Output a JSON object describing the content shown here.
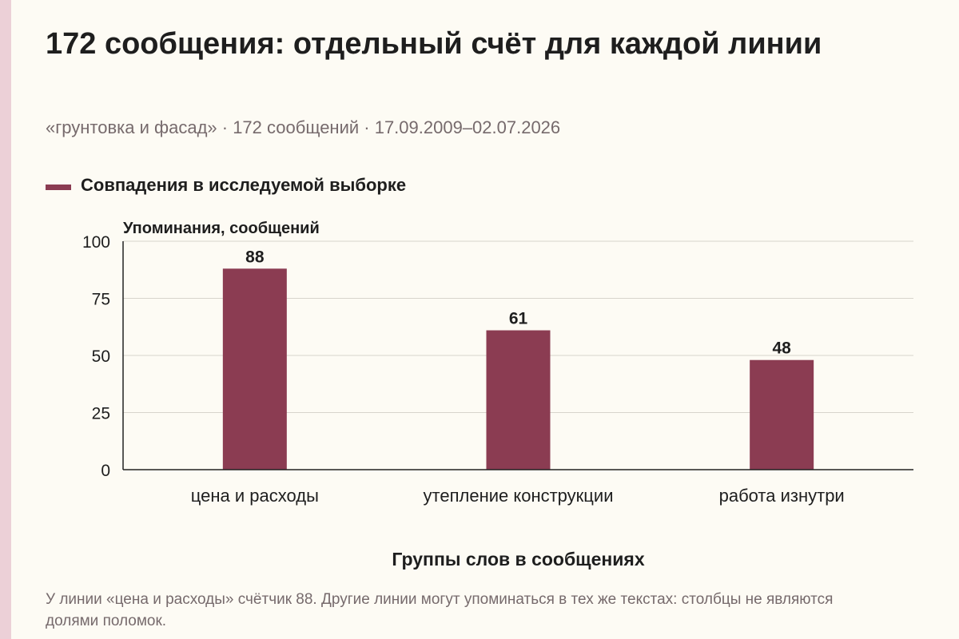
{
  "colors": {
    "accent_strip": "#ecd0d7",
    "bar": "#8b3c52",
    "text": "#1e1e1e",
    "muted": "#766a6c",
    "grid": "#d8d4cc",
    "axis": "#222222"
  },
  "header": {
    "title": "172 сообщения: отдельный счёт для каждой линии",
    "subtitle": "«грунтовка и фасад» · 172 сообщений · 17.09.2009–02.07.2026"
  },
  "footnote": "У линии «цена и расходы» счётчик 88. Другие линии могут упоминаться в тех же текстах: столбцы не являются долями поломок.",
  "chart_data": {
    "type": "bar",
    "categories": [
      "цена и расходы",
      "утепление конструкции",
      "работа изнутри"
    ],
    "series": [
      {
        "name": "Совпадения в исследуемой выборке",
        "values": [
          88,
          61,
          48
        ]
      }
    ],
    "xlabel": "Группы слов в сообщениях",
    "ylabel": "Упоминания, сообщений",
    "ylim": [
      0,
      100
    ],
    "yticks": [
      0,
      25,
      50,
      75,
      100
    ],
    "grid": true,
    "legend": "top-left",
    "data_labels": true
  }
}
